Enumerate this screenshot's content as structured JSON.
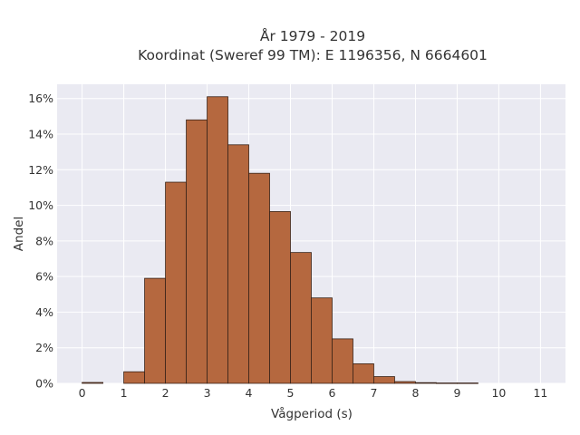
{
  "chart_data": {
    "type": "bar",
    "title": "År 1979 - 2019",
    "subtitle": "Koordinat (Sweref 99 TM): E 1196356, N 6664601",
    "xlabel": "Vågperiod (s)",
    "ylabel": "Andel",
    "bin_width": 0.5,
    "xlim": [
      -0.6,
      11.6
    ],
    "ylim": [
      0,
      16.8
    ],
    "xticks": [
      0,
      1,
      2,
      3,
      4,
      5,
      6,
      7,
      8,
      9,
      10,
      11
    ],
    "xtick_labels": [
      "0",
      "1",
      "2",
      "3",
      "4",
      "5",
      "6",
      "7",
      "8",
      "9",
      "10",
      "11"
    ],
    "yticks": [
      0,
      2,
      4,
      6,
      8,
      10,
      12,
      14,
      16
    ],
    "ytick_labels": [
      "0%",
      "2%",
      "4%",
      "6%",
      "8%",
      "10%",
      "12%",
      "14%",
      "16%"
    ],
    "grid": true,
    "bar_color": "#b5683f",
    "bar_edge_color": "#3a2419",
    "background_color": "#eaeaf2",
    "grid_color": "#ffffff",
    "bins": [
      {
        "x": 0.0,
        "value": 0.05
      },
      {
        "x": 0.5,
        "value": 0.0
      },
      {
        "x": 1.0,
        "value": 0.65
      },
      {
        "x": 1.5,
        "value": 5.9
      },
      {
        "x": 2.0,
        "value": 11.3
      },
      {
        "x": 2.5,
        "value": 14.8
      },
      {
        "x": 3.0,
        "value": 16.1
      },
      {
        "x": 3.5,
        "value": 13.4
      },
      {
        "x": 4.0,
        "value": 11.8
      },
      {
        "x": 4.5,
        "value": 9.65
      },
      {
        "x": 5.0,
        "value": 7.35
      },
      {
        "x": 5.5,
        "value": 4.8
      },
      {
        "x": 6.0,
        "value": 2.5
      },
      {
        "x": 6.5,
        "value": 1.1
      },
      {
        "x": 7.0,
        "value": 0.38
      },
      {
        "x": 7.5,
        "value": 0.1
      },
      {
        "x": 8.0,
        "value": 0.04
      },
      {
        "x": 8.5,
        "value": 0.02
      },
      {
        "x": 9.0,
        "value": 0.02
      }
    ]
  }
}
